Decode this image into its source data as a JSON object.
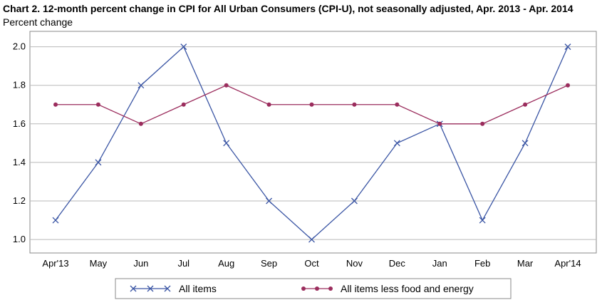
{
  "chart_data": {
    "type": "line",
    "title": "Chart 2. 12-month percent change in CPI for All Urban Consumers (CPI-U), not seasonally adjusted, Apr. 2013 - Apr. 2014",
    "ylabel": "Percent change",
    "xlabel": "",
    "categories": [
      "Apr'13",
      "May",
      "Jun",
      "Jul",
      "Aug",
      "Sep",
      "Oct",
      "Nov",
      "Dec",
      "Jan",
      "Feb",
      "Mar",
      "Apr'14"
    ],
    "yticks": [
      "1.0",
      "1.2",
      "1.4",
      "1.6",
      "1.8",
      "2.0"
    ],
    "ylim": [
      0.93,
      2.08
    ],
    "grid": true,
    "legend_position": "bottom",
    "series": [
      {
        "name": "All items",
        "color": "#3a55a4",
        "marker": "x",
        "values": [
          1.1,
          1.4,
          1.8,
          2.0,
          1.5,
          1.2,
          1.0,
          1.2,
          1.5,
          1.6,
          1.1,
          1.5,
          2.0
        ]
      },
      {
        "name": "All items less food and energy",
        "color": "#9b2d5d",
        "marker": "dot",
        "values": [
          1.7,
          1.7,
          1.6,
          1.7,
          1.8,
          1.7,
          1.7,
          1.7,
          1.7,
          1.6,
          1.6,
          1.7,
          1.8
        ]
      }
    ]
  }
}
